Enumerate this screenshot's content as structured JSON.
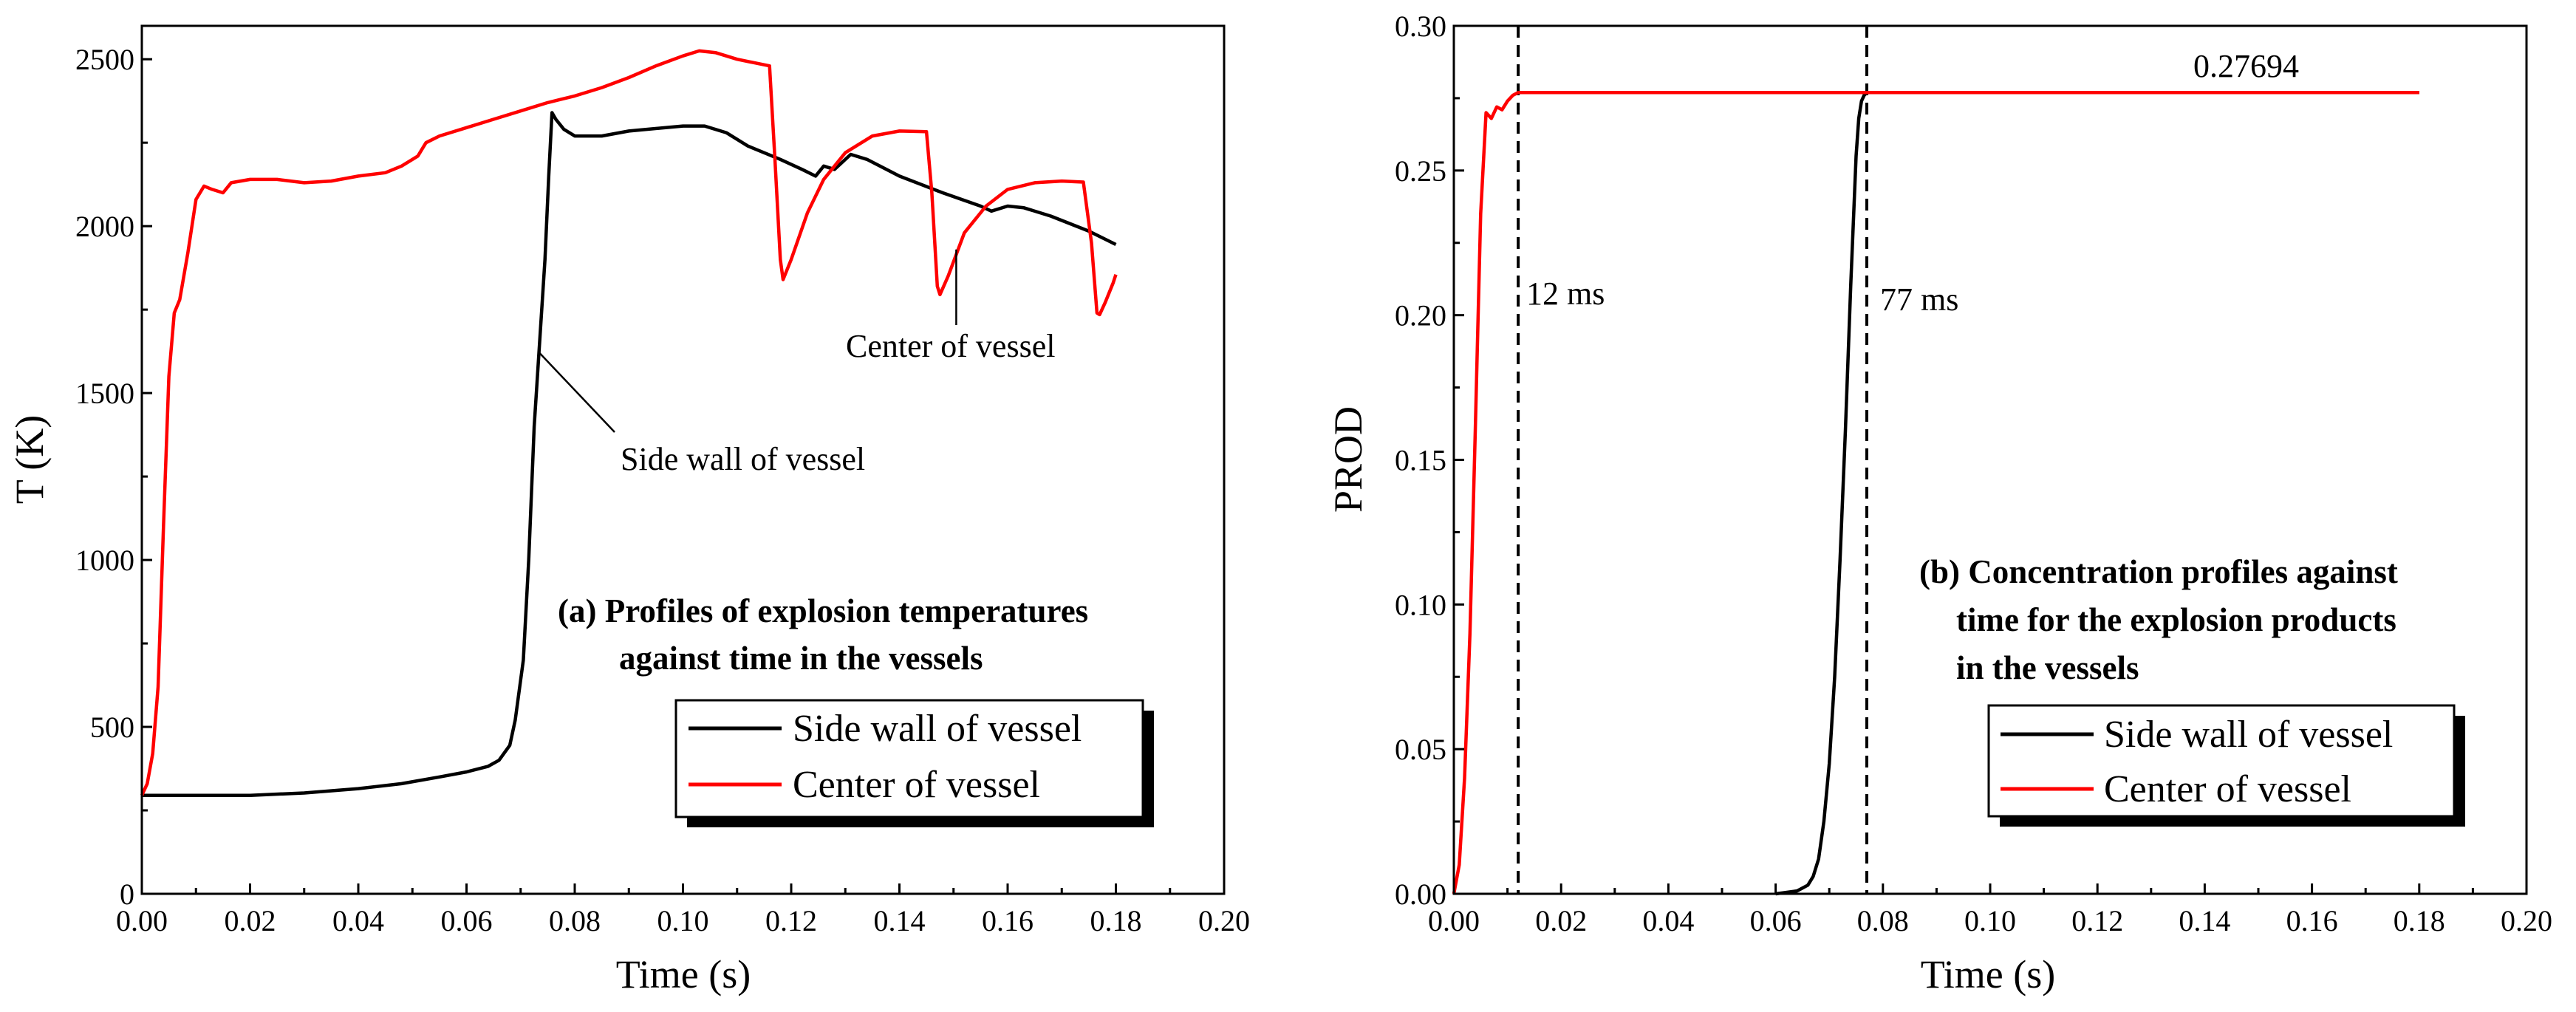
{
  "chart_data": [
    {
      "id": "a",
      "type": "line",
      "xlabel": "Time (s)",
      "ylabel": "T (K)",
      "xlim": [
        0.0,
        0.2
      ],
      "ylim": [
        0,
        2600
      ],
      "xticks": [
        "0.00",
        "0.02",
        "0.04",
        "0.06",
        "0.08",
        "0.10",
        "0.12",
        "0.14",
        "0.16",
        "0.18",
        "0.20"
      ],
      "yticks": [
        "0",
        "500",
        "1000",
        "1500",
        "2000",
        "2500"
      ],
      "caption": [
        "(a) Profiles of explosion temperatures",
        "against time in the vessels"
      ],
      "legend": [
        "Side wall of vessel",
        "Center of vessel"
      ],
      "annotations": {
        "side": {
          "text": "Side wall of vessel",
          "point": [
            0.0735,
            1620
          ]
        },
        "center": {
          "text": "Center of vessel",
          "point": [
            0.1505,
            1930
          ]
        }
      },
      "series": [
        {
          "name": "Side wall of vessel",
          "color": "#000000",
          "points": [
            [
              0,
              295
            ],
            [
              0.02,
              295
            ],
            [
              0.03,
              302
            ],
            [
              0.04,
              315
            ],
            [
              0.048,
              330
            ],
            [
              0.055,
              350
            ],
            [
              0.06,
              365
            ],
            [
              0.064,
              382
            ],
            [
              0.066,
              400
            ],
            [
              0.068,
              445
            ],
            [
              0.069,
              520
            ],
            [
              0.0705,
              700
            ],
            [
              0.0715,
              1000
            ],
            [
              0.0725,
              1400
            ],
            [
              0.0735,
              1650
            ],
            [
              0.0745,
              1900
            ],
            [
              0.0752,
              2150
            ],
            [
              0.0758,
              2340
            ],
            [
              0.0765,
              2320
            ],
            [
              0.078,
              2290
            ],
            [
              0.08,
              2270
            ],
            [
              0.085,
              2270
            ],
            [
              0.09,
              2285
            ],
            [
              0.1,
              2300
            ],
            [
              0.104,
              2300
            ],
            [
              0.108,
              2280
            ],
            [
              0.112,
              2240
            ],
            [
              0.118,
              2200
            ],
            [
              0.122,
              2170
            ],
            [
              0.1245,
              2150
            ],
            [
              0.126,
              2180
            ],
            [
              0.128,
              2170
            ],
            [
              0.131,
              2215
            ],
            [
              0.134,
              2200
            ],
            [
              0.14,
              2150
            ],
            [
              0.148,
              2100
            ],
            [
              0.155,
              2060
            ],
            [
              0.157,
              2045
            ],
            [
              0.16,
              2060
            ],
            [
              0.163,
              2055
            ],
            [
              0.168,
              2030
            ],
            [
              0.175,
              1985
            ],
            [
              0.18,
              1945
            ]
          ]
        },
        {
          "name": "Center of vessel",
          "color": "#ff0000",
          "points": [
            [
              0,
              295
            ],
            [
              0.001,
              330
            ],
            [
              0.002,
              420
            ],
            [
              0.003,
              620
            ],
            [
              0.004,
              1100
            ],
            [
              0.005,
              1550
            ],
            [
              0.006,
              1740
            ],
            [
              0.007,
              1780
            ],
            [
              0.0085,
              1920
            ],
            [
              0.01,
              2080
            ],
            [
              0.0115,
              2120
            ],
            [
              0.013,
              2110
            ],
            [
              0.015,
              2100
            ],
            [
              0.0165,
              2130
            ],
            [
              0.02,
              2140
            ],
            [
              0.025,
              2140
            ],
            [
              0.03,
              2130
            ],
            [
              0.035,
              2135
            ],
            [
              0.04,
              2150
            ],
            [
              0.045,
              2160
            ],
            [
              0.048,
              2180
            ],
            [
              0.051,
              2210
            ],
            [
              0.0525,
              2250
            ],
            [
              0.055,
              2270
            ],
            [
              0.06,
              2295
            ],
            [
              0.065,
              2320
            ],
            [
              0.07,
              2345
            ],
            [
              0.075,
              2370
            ],
            [
              0.08,
              2390
            ],
            [
              0.085,
              2415
            ],
            [
              0.09,
              2445
            ],
            [
              0.095,
              2480
            ],
            [
              0.1,
              2510
            ],
            [
              0.103,
              2525
            ],
            [
              0.106,
              2520
            ],
            [
              0.11,
              2500
            ],
            [
              0.113,
              2490
            ],
            [
              0.116,
              2480
            ],
            [
              0.117,
              2200
            ],
            [
              0.118,
              1900
            ],
            [
              0.1185,
              1840
            ],
            [
              0.12,
              1900
            ],
            [
              0.123,
              2040
            ],
            [
              0.126,
              2140
            ],
            [
              0.13,
              2220
            ],
            [
              0.135,
              2270
            ],
            [
              0.14,
              2285
            ],
            [
              0.145,
              2283
            ],
            [
              0.146,
              2100
            ],
            [
              0.147,
              1820
            ],
            [
              0.1475,
              1795
            ],
            [
              0.149,
              1850
            ],
            [
              0.152,
              1980
            ],
            [
              0.156,
              2060
            ],
            [
              0.16,
              2110
            ],
            [
              0.165,
              2130
            ],
            [
              0.17,
              2135
            ],
            [
              0.174,
              2132
            ],
            [
              0.1755,
              1950
            ],
            [
              0.1765,
              1740
            ],
            [
              0.177,
              1735
            ],
            [
              0.178,
              1770
            ],
            [
              0.1795,
              1830
            ],
            [
              0.18,
              1855
            ]
          ]
        }
      ]
    },
    {
      "id": "b",
      "type": "line",
      "xlabel": "Time (s)",
      "ylabel": "PROD",
      "xlim": [
        0.0,
        0.2
      ],
      "ylim": [
        0.0,
        0.3
      ],
      "xticks": [
        "0.00",
        "0.02",
        "0.04",
        "0.06",
        "0.08",
        "0.10",
        "0.12",
        "0.14",
        "0.16",
        "0.18",
        "0.20"
      ],
      "yticks": [
        "0.00",
        "0.05",
        "0.10",
        "0.15",
        "0.20",
        "0.25",
        "0.30"
      ],
      "caption": [
        "(b) Concentration profiles against",
        "time for the explosion products",
        "in the vessels"
      ],
      "legend": [
        "Side wall of vessel",
        "Center of vessel"
      ],
      "vlines": [
        {
          "x": 0.012,
          "label": "12 ms"
        },
        {
          "x": 0.077,
          "label": "77 ms"
        }
      ],
      "value_label": {
        "text": "0.27694",
        "x": 0.14,
        "y": 0.27694
      },
      "series": [
        {
          "name": "Side wall of vessel",
          "color": "#000000",
          "points": [
            [
              0.06,
              0
            ],
            [
              0.064,
              0.001
            ],
            [
              0.066,
              0.003
            ],
            [
              0.067,
              0.006
            ],
            [
              0.068,
              0.012
            ],
            [
              0.069,
              0.025
            ],
            [
              0.07,
              0.045
            ],
            [
              0.071,
              0.075
            ],
            [
              0.072,
              0.115
            ],
            [
              0.073,
              0.16
            ],
            [
              0.074,
              0.21
            ],
            [
              0.075,
              0.255
            ],
            [
              0.0755,
              0.268
            ],
            [
              0.076,
              0.274
            ],
            [
              0.0765,
              0.276
            ],
            [
              0.077,
              0.27694
            ],
            [
              0.18,
              0.27694
            ]
          ]
        },
        {
          "name": "Center of vessel",
          "color": "#ff0000",
          "points": [
            [
              0,
              0
            ],
            [
              0.001,
              0.01
            ],
            [
              0.002,
              0.04
            ],
            [
              0.003,
              0.09
            ],
            [
              0.004,
              0.16
            ],
            [
              0.005,
              0.235
            ],
            [
              0.006,
              0.27
            ],
            [
              0.007,
              0.268
            ],
            [
              0.008,
              0.272
            ],
            [
              0.009,
              0.271
            ],
            [
              0.01,
              0.274
            ],
            [
              0.011,
              0.276
            ],
            [
              0.012,
              0.27694
            ],
            [
              0.18,
              0.27694
            ]
          ]
        }
      ]
    }
  ]
}
